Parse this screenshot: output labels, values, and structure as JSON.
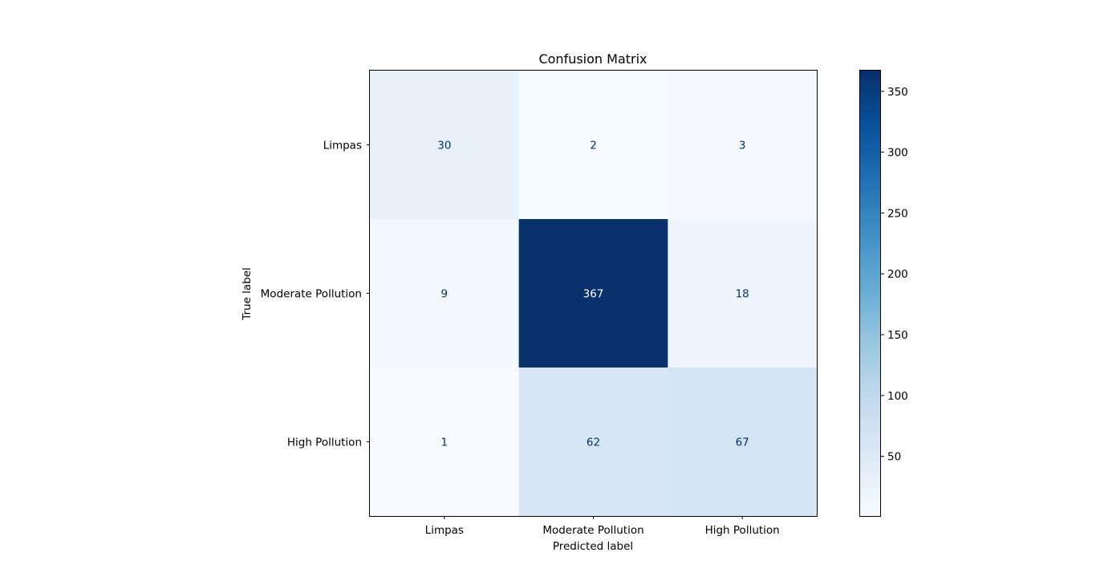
{
  "chart_data": {
    "type": "heatmap",
    "title": "Confusion Matrix",
    "xlabel": "Predicted label",
    "ylabel": "True label",
    "x_categories": [
      "Limpas",
      "Moderate Pollution",
      "High Pollution"
    ],
    "y_categories": [
      "Limpas",
      "Moderate Pollution",
      "High Pollution"
    ],
    "values": [
      [
        30,
        2,
        3
      ],
      [
        9,
        367,
        18
      ],
      [
        1,
        62,
        67
      ]
    ],
    "colormap": "Blues",
    "vmin": 1,
    "vmax": 367,
    "colorbar_ticks": [
      50,
      100,
      150,
      200,
      250,
      300,
      350
    ],
    "text_color_light": "#ffffff",
    "text_color_dark": "#08306b"
  }
}
